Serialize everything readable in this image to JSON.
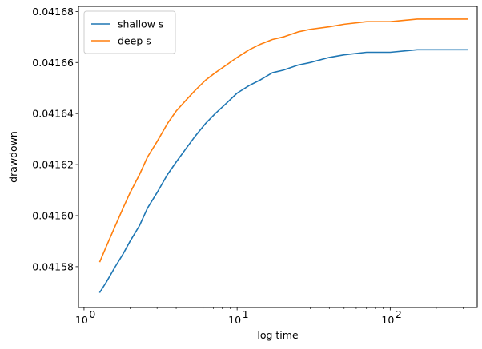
{
  "chart_data": {
    "type": "line",
    "title": "",
    "xlabel": "log time",
    "ylabel": "drawdown",
    "xscale": "log",
    "xlim": [
      0.92,
      370
    ],
    "ylim": [
      0.041564,
      0.041682
    ],
    "xticks": [
      {
        "value": 1,
        "label": "10",
        "exp": "0"
      },
      {
        "value": 10,
        "label": "10",
        "exp": "1"
      },
      {
        "value": 100,
        "label": "10",
        "exp": "2"
      }
    ],
    "yticks": [
      {
        "value": 0.04158,
        "label": "0.04158"
      },
      {
        "value": 0.0416,
        "label": "0.04160"
      },
      {
        "value": 0.04162,
        "label": "0.04162"
      },
      {
        "value": 0.04164,
        "label": "0.04164"
      },
      {
        "value": 0.04166,
        "label": "0.04166"
      },
      {
        "value": 0.04168,
        "label": "0.04168"
      }
    ],
    "grid": false,
    "legend_position": "upper-left",
    "series": [
      {
        "name": "shallow s",
        "color": "#1f77b4",
        "x": [
          1.27,
          1.4,
          1.6,
          1.8,
          2.0,
          2.3,
          2.6,
          3.0,
          3.5,
          4.0,
          4.6,
          5.3,
          6.2,
          7.2,
          8.5,
          10,
          12,
          14,
          17,
          20,
          25,
          30,
          40,
          50,
          70,
          100,
          150,
          200,
          320
        ],
        "y": [
          0.04157,
          0.041574,
          0.04158,
          0.041585,
          0.04159,
          0.041596,
          0.041603,
          0.041609,
          0.041616,
          0.041621,
          0.041626,
          0.041631,
          0.041636,
          0.04164,
          0.041644,
          0.041648,
          0.041651,
          0.041653,
          0.041656,
          0.041657,
          0.041659,
          0.04166,
          0.041662,
          0.041663,
          0.041664,
          0.041664,
          0.041665,
          0.041665,
          0.041665
        ]
      },
      {
        "name": "deep s",
        "color": "#ff7f0e",
        "x": [
          1.27,
          1.4,
          1.6,
          1.8,
          2.0,
          2.3,
          2.6,
          3.0,
          3.5,
          4.0,
          4.6,
          5.3,
          6.2,
          7.2,
          8.5,
          10,
          12,
          14,
          17,
          20,
          25,
          30,
          40,
          50,
          70,
          100,
          150,
          200,
          320
        ],
        "y": [
          0.041582,
          0.041588,
          0.041596,
          0.041603,
          0.041609,
          0.041616,
          0.041623,
          0.041629,
          0.041636,
          0.041641,
          0.041645,
          0.041649,
          0.041653,
          0.041656,
          0.041659,
          0.041662,
          0.041665,
          0.041667,
          0.041669,
          0.04167,
          0.041672,
          0.041673,
          0.041674,
          0.041675,
          0.041676,
          0.041676,
          0.041677,
          0.041677,
          0.041677
        ]
      }
    ]
  }
}
